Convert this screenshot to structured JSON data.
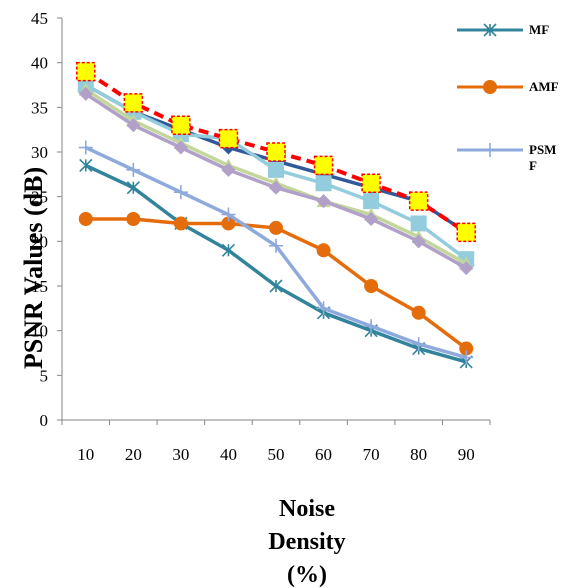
{
  "chart_data": {
    "type": "line",
    "xlabel_lines": [
      "Noise",
      "Density",
      "(%)"
    ],
    "ylabel": "PSNR Values (dB)",
    "ylim": [
      0,
      45
    ],
    "yticks": [
      "0",
      "5",
      "10",
      "15",
      "20",
      "25",
      "30",
      "35",
      "40",
      "45"
    ],
    "categories": [
      "10",
      "20",
      "30",
      "40",
      "50",
      "60",
      "70",
      "80",
      "90"
    ],
    "legend_position": "right",
    "series": [
      {
        "name": "MF",
        "color": "#31849b",
        "marker": "asterisk",
        "values": [
          28.5,
          26,
          22,
          19,
          15,
          12,
          10,
          8,
          6.5
        ]
      },
      {
        "name": "AMF",
        "color": "#e46c0a",
        "marker": "circle",
        "values": [
          22.5,
          22.5,
          22,
          22,
          21.5,
          19,
          15,
          12,
          8
        ]
      },
      {
        "name": "PSM\nF",
        "color": "#8ea9db",
        "marker": "plus",
        "values": [
          30.5,
          28,
          25.5,
          23,
          19.5,
          12.5,
          10.5,
          8.5,
          7
        ]
      },
      {
        "name": "",
        "color": "#31589b",
        "marker": "diamond",
        "values": [
          37.5,
          34.5,
          32.5,
          30.5,
          29,
          27.5,
          26,
          24.5,
          21
        ]
      },
      {
        "name": "",
        "color": "#93cddd",
        "marker": "square",
        "values": [
          37.5,
          34.5,
          32,
          31.5,
          28,
          26.5,
          24.5,
          22,
          18
        ]
      },
      {
        "name": "",
        "color": "#c4d79b",
        "marker": "triangle",
        "values": [
          37,
          33.5,
          31,
          28.5,
          26.5,
          24.5,
          23,
          20.5,
          17.5
        ]
      },
      {
        "name": "",
        "color": "#b1a0c7",
        "marker": "x-diamond",
        "values": [
          36.5,
          33,
          30.5,
          28,
          26,
          24.5,
          22.5,
          20,
          17
        ]
      },
      {
        "name": "",
        "color": "#ff0000",
        "marker": "yellow-square",
        "dashed": true,
        "values": [
          39,
          35.5,
          33,
          31.5,
          30,
          28.5,
          26.5,
          24.5,
          21
        ]
      }
    ]
  }
}
